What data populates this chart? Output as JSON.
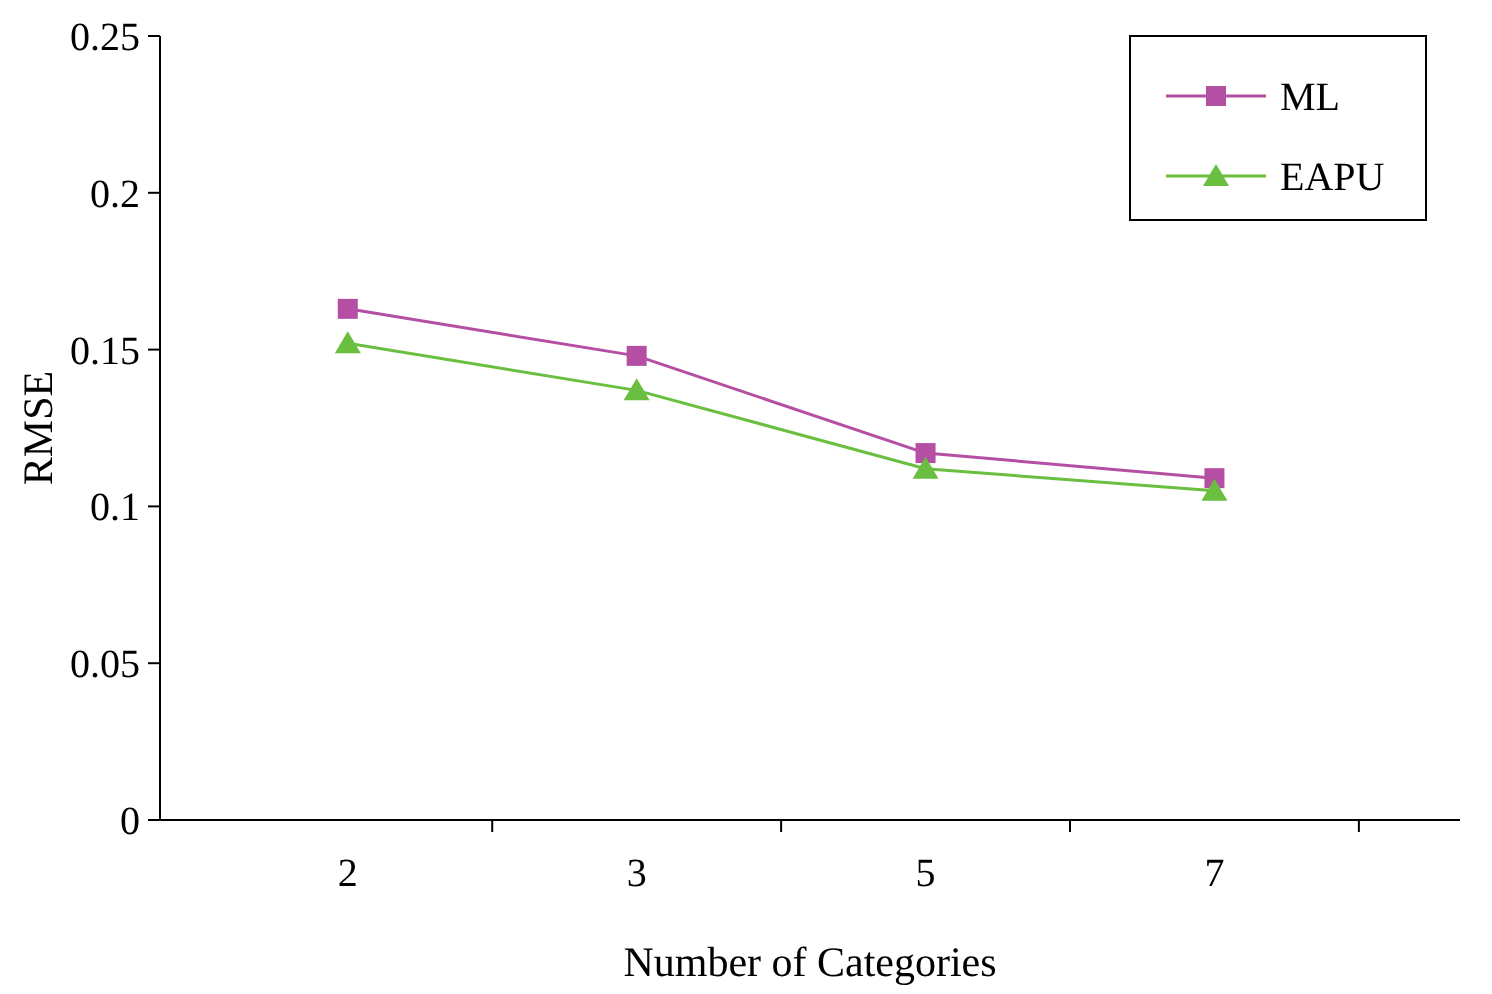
{
  "chart_data": {
    "type": "line",
    "xlabel": "Number of Categories",
    "ylabel": "RMSE",
    "categories": [
      "2",
      "3",
      "5",
      "7"
    ],
    "ylim": [
      0,
      0.25
    ],
    "yticks": [
      0,
      0.05,
      0.1,
      0.15,
      0.2,
      0.25
    ],
    "grid": false,
    "legend": "top right",
    "series": [
      {
        "name": "ML",
        "color": "#b44fa4",
        "marker": "square",
        "values": [
          0.163,
          0.148,
          0.117,
          0.109
        ]
      },
      {
        "name": "EAPU",
        "color": "#6abf40",
        "marker": "triangle",
        "values": [
          0.152,
          0.137,
          0.112,
          0.105
        ]
      }
    ]
  }
}
